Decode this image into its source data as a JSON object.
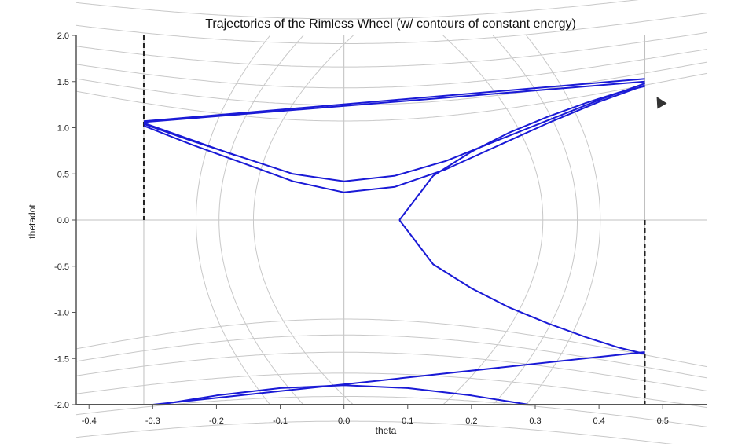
{
  "chart_data": {
    "type": "line",
    "title": "Trajectories of the Rimless Wheel (w/ contours of constant energy)",
    "xlabel": "theta",
    "ylabel": "thetadot",
    "xlim": [
      -0.42,
      0.57
    ],
    "ylim": [
      -2.0,
      2.0
    ],
    "xticks": [
      -0.4,
      -0.3,
      -0.2,
      -0.1,
      0.0,
      0.1,
      0.2,
      0.3,
      0.4,
      0.5
    ],
    "xtick_labels": [
      "-0.4",
      "-0.3",
      "-0.2",
      "-0.1",
      "0.0",
      "0.1",
      "0.2",
      "0.3",
      "0.4",
      "0.5"
    ],
    "yticks": [
      2.0,
      1.5,
      1.0,
      0.5,
      0.0,
      -0.5,
      -1.0,
      -1.5,
      -2.0
    ],
    "ytick_labels": [
      "2.0",
      "1.5",
      "1.0",
      "0.5",
      "0.0",
      "-0.5",
      "-1.0",
      "-1.5",
      "-2.0"
    ],
    "grid": true,
    "colors": {
      "trajectory": "#1a1ad6",
      "contour": "#c8c8c8",
      "grid": "#c0c0c0",
      "axis": "#555555",
      "boundary": "#222222"
    },
    "boundaries": {
      "theta_left": -0.314,
      "theta_right": 0.472
    },
    "contours": {
      "saddle_levels": [
        0.0,
        0.2,
        0.45,
        0.8,
        1.25,
        1.8
      ],
      "well_levels": [
        0.15,
        0.45,
        0.9
      ]
    },
    "series": [
      {
        "x": [
          0.087,
          0.14,
          0.2,
          0.26,
          0.32,
          0.38,
          0.43,
          0.472
        ],
        "y": [
          0.0,
          -0.48,
          -0.74,
          -0.95,
          -1.12,
          -1.27,
          -1.38,
          -1.45
        ]
      },
      {
        "x": [
          0.087,
          0.14,
          0.2,
          0.26,
          0.32,
          0.38,
          0.43,
          0.472
        ],
        "y": [
          0.0,
          0.48,
          0.74,
          0.95,
          1.12,
          1.27,
          1.38,
          1.45
        ]
      },
      {
        "x": [
          0.472,
          -0.314
        ],
        "y": [
          1.5,
          1.06
        ]
      },
      {
        "x": [
          0.472,
          -0.314
        ],
        "y": [
          1.53,
          1.07
        ]
      },
      {
        "x": [
          -0.314,
          -0.24,
          -0.16,
          -0.08,
          0.0,
          0.08,
          0.16,
          0.24,
          0.32,
          0.4,
          0.472
        ],
        "y": [
          1.04,
          0.86,
          0.68,
          0.5,
          0.42,
          0.48,
          0.64,
          0.86,
          1.08,
          1.3,
          1.48
        ]
      },
      {
        "x": [
          -0.314,
          -0.24,
          -0.16,
          -0.08,
          0.0,
          0.08,
          0.16,
          0.24,
          0.32,
          0.4,
          0.472
        ],
        "y": [
          1.02,
          0.82,
          0.62,
          0.42,
          0.3,
          0.36,
          0.55,
          0.8,
          1.05,
          1.28,
          1.46
        ]
      },
      {
        "x": [
          -0.314,
          -0.17
        ],
        "y": [
          1.05,
          0.7
        ]
      },
      {
        "x": [
          0.472,
          0.0,
          -0.3
        ],
        "y": [
          -1.43,
          -1.78,
          -2.0
        ]
      },
      {
        "x": [
          -0.29,
          -0.2,
          -0.1,
          0.0,
          0.1,
          0.2,
          0.29
        ],
        "y": [
          -2.0,
          -1.9,
          -1.82,
          -1.79,
          -1.82,
          -1.9,
          -2.0
        ]
      }
    ]
  }
}
